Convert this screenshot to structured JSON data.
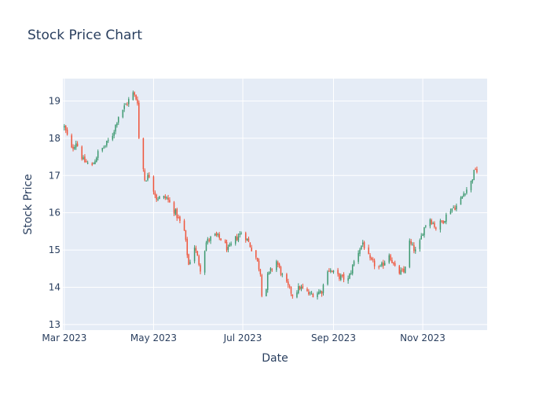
{
  "chart_data": {
    "type": "candlestick",
    "title": "Stock Price Chart",
    "xlabel": "Date",
    "ylabel": "Stock Price",
    "xlim": [
      "2023-02-28",
      "2023-12-15"
    ],
    "ylim": [
      12.85,
      19.6
    ],
    "x_ticks": [
      {
        "date": "2023-03-01",
        "label": "Mar 2023"
      },
      {
        "date": "2023-05-01",
        "label": "May 2023"
      },
      {
        "date": "2023-07-01",
        "label": "Jul 2023"
      },
      {
        "date": "2023-09-01",
        "label": "Sep 2023"
      },
      {
        "date": "2023-11-01",
        "label": "Nov 2023"
      }
    ],
    "y_ticks": [
      13,
      14,
      15,
      16,
      17,
      18,
      19
    ],
    "grid": true,
    "colors": {
      "increasing": "#3d9970",
      "decreasing": "#ef553b",
      "plot_bg": "#e5ecf6",
      "text": "#2a3f5f"
    },
    "close_path": [
      [
        "2023-03-01",
        18.3
      ],
      [
        "2023-03-06",
        17.7
      ],
      [
        "2023-03-09",
        17.9
      ],
      [
        "2023-03-14",
        17.4
      ],
      [
        "2023-03-20",
        17.25
      ],
      [
        "2023-03-24",
        17.6
      ],
      [
        "2023-03-29",
        17.8
      ],
      [
        "2023-04-03",
        18.1
      ],
      [
        "2023-04-07",
        18.6
      ],
      [
        "2023-04-12",
        18.9
      ],
      [
        "2023-04-17",
        19.2
      ],
      [
        "2023-04-20",
        19.0
      ],
      [
        "2023-04-21",
        18.0
      ],
      [
        "2023-04-25",
        16.9
      ],
      [
        "2023-04-28",
        17.0
      ],
      [
        "2023-05-03",
        16.4
      ],
      [
        "2023-05-10",
        16.4
      ],
      [
        "2023-05-16",
        16.0
      ],
      [
        "2023-05-22",
        15.5
      ],
      [
        "2023-05-25",
        14.6
      ],
      [
        "2023-05-29",
        15.1
      ],
      [
        "2023-06-02",
        14.5
      ],
      [
        "2023-06-06",
        15.2
      ],
      [
        "2023-06-11",
        15.4
      ],
      [
        "2023-06-16",
        15.3
      ],
      [
        "2023-06-21",
        15.0
      ],
      [
        "2023-06-26",
        15.3
      ],
      [
        "2023-07-01",
        15.5
      ],
      [
        "2023-07-05",
        15.2
      ],
      [
        "2023-07-10",
        14.8
      ],
      [
        "2023-07-13",
        14.4
      ],
      [
        "2023-07-15",
        13.3
      ],
      [
        "2023-07-18",
        14.3
      ],
      [
        "2023-07-24",
        14.7
      ],
      [
        "2023-07-29",
        14.2
      ],
      [
        "2023-08-04",
        13.8
      ],
      [
        "2023-08-09",
        14.0
      ],
      [
        "2023-08-16",
        13.8
      ],
      [
        "2023-08-24",
        13.9
      ],
      [
        "2023-08-28",
        14.5
      ],
      [
        "2023-09-04",
        14.3
      ],
      [
        "2023-09-11",
        14.2
      ],
      [
        "2023-09-16",
        14.8
      ],
      [
        "2023-09-21",
        15.2
      ],
      [
        "2023-09-26",
        14.7
      ],
      [
        "2023-10-03",
        14.5
      ],
      [
        "2023-10-09",
        14.9
      ],
      [
        "2023-10-14",
        14.4
      ],
      [
        "2023-10-19",
        14.4
      ],
      [
        "2023-10-23",
        15.2
      ],
      [
        "2023-10-28",
        14.9
      ],
      [
        "2023-11-01",
        15.5
      ],
      [
        "2023-11-05",
        15.9
      ],
      [
        "2023-11-10",
        15.6
      ],
      [
        "2023-11-15",
        15.8
      ],
      [
        "2023-11-20",
        16.1
      ],
      [
        "2023-11-25",
        16.2
      ],
      [
        "2023-11-30",
        16.6
      ],
      [
        "2023-12-03",
        16.7
      ],
      [
        "2023-12-07",
        17.2
      ],
      [
        "2023-12-10",
        16.9
      ]
    ]
  }
}
